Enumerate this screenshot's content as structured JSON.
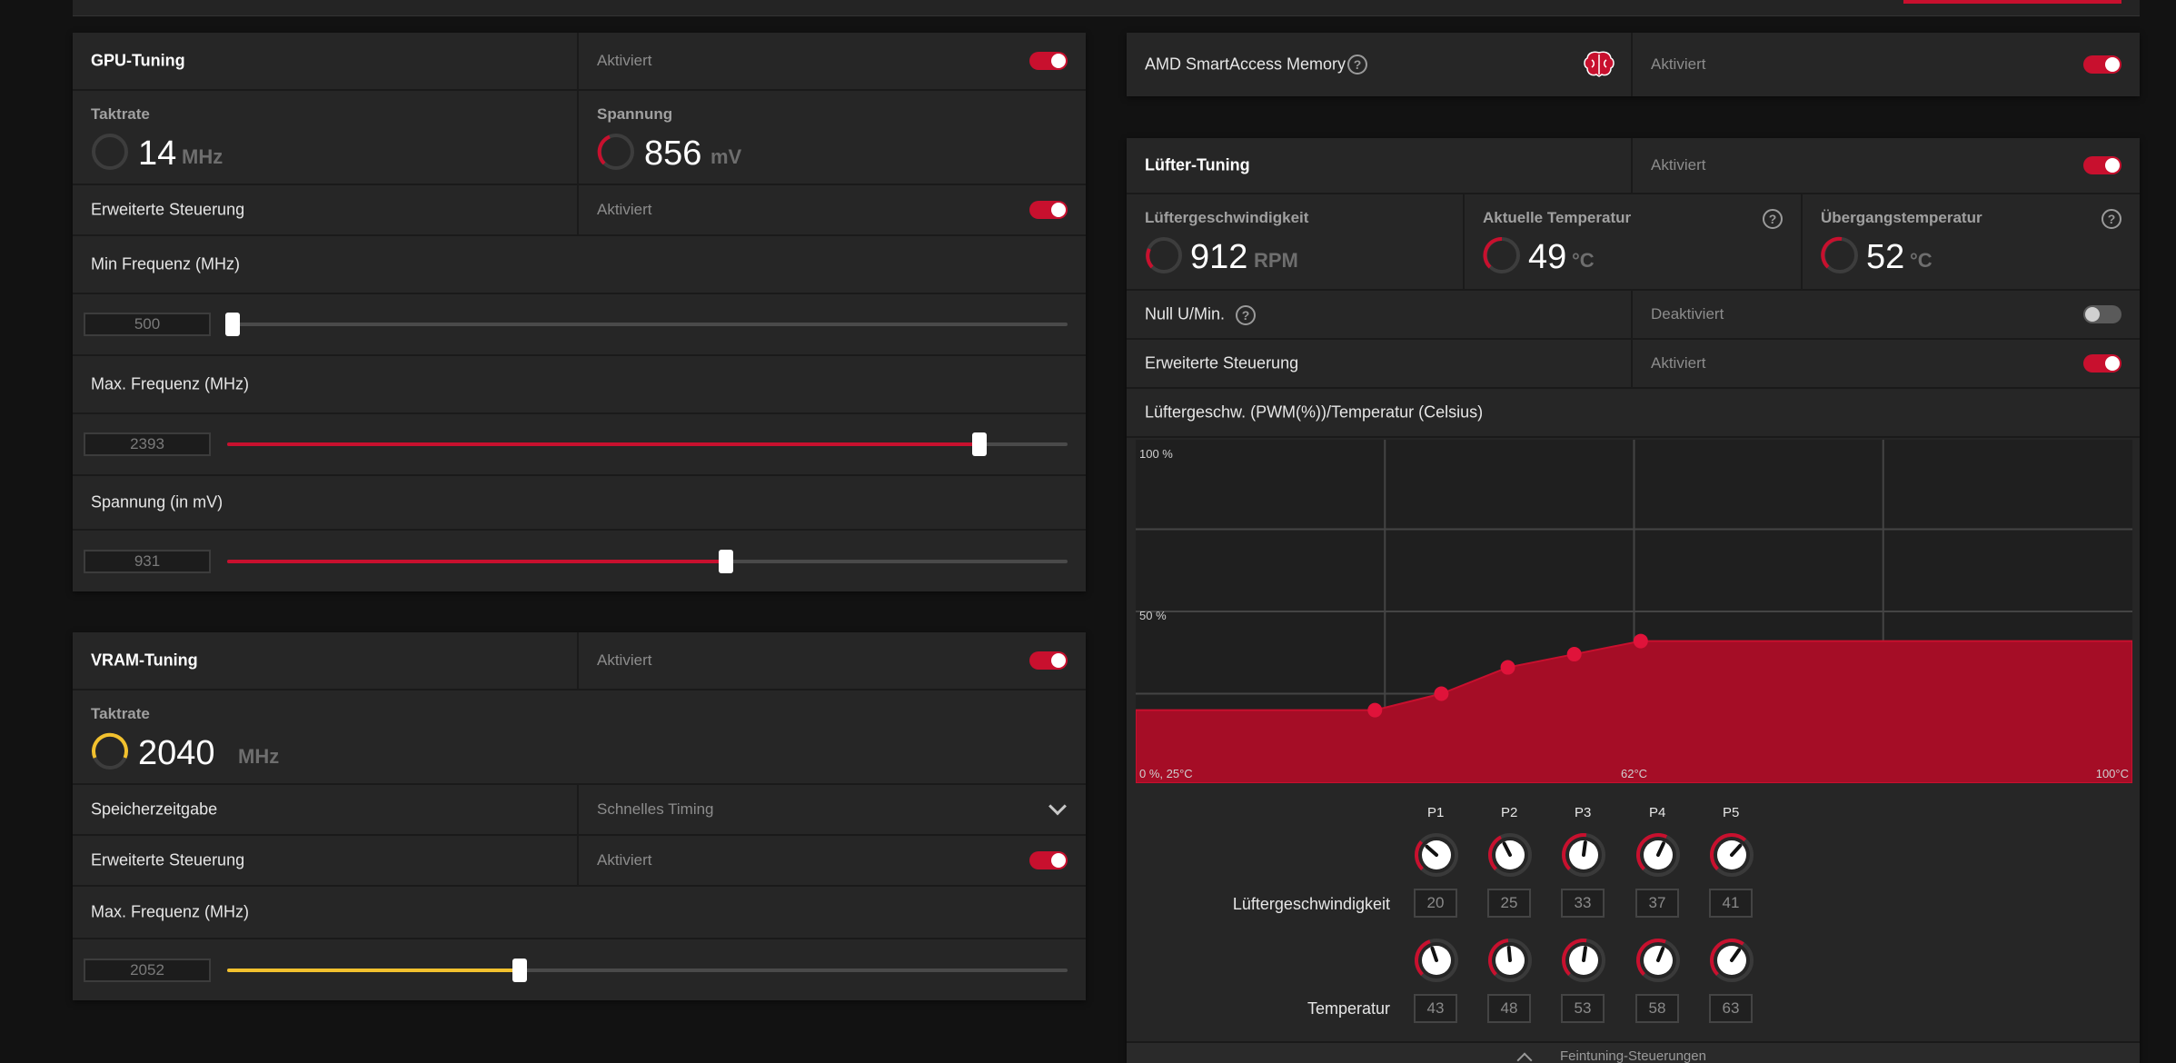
{
  "colors": {
    "accent": "#c8102e",
    "vram_accent": "#f2c12e",
    "panel": "#262626",
    "background": "#121212"
  },
  "gpu_tuning": {
    "title": "GPU-Tuning",
    "status": "Aktiviert",
    "enabled": true,
    "clock": {
      "label": "Taktrate",
      "value": "14",
      "unit": "MHz"
    },
    "voltage": {
      "label": "Spannung",
      "value": "856",
      "unit": "mV"
    },
    "advanced": {
      "label": "Erweiterte Steuerung",
      "status": "Aktiviert",
      "enabled": true
    },
    "min_freq": {
      "label": "Min Frequenz (MHz)",
      "value": "500",
      "fraction": 0.0
    },
    "max_freq": {
      "label": "Max. Frequenz (MHz)",
      "value": "2393",
      "fraction": 0.895
    },
    "voltage_slider": {
      "label": "Spannung (in mV)",
      "value": "931",
      "fraction": 0.593
    }
  },
  "vram_tuning": {
    "title": "VRAM-Tuning",
    "status": "Aktiviert",
    "enabled": true,
    "clock": {
      "label": "Taktrate",
      "value": "2040",
      "unit": "MHz"
    },
    "memory_timing": {
      "label": "Speicherzeitgabe",
      "value": "Schnelles Timing"
    },
    "advanced": {
      "label": "Erweiterte Steuerung",
      "status": "Aktiviert",
      "enabled": true
    },
    "max_freq": {
      "label": "Max. Frequenz (MHz)",
      "value": "2052",
      "fraction": 0.348
    }
  },
  "sam": {
    "label": "AMD SmartAccess Memory",
    "help": "?",
    "icon": "brain-icon",
    "status": "Aktiviert",
    "enabled": true
  },
  "fan_tuning": {
    "title": "Lüfter-Tuning",
    "status": "Aktiviert",
    "enabled": true,
    "fan_speed": {
      "label": "Lüftergeschwindigkeit",
      "value": "912",
      "unit": "RPM"
    },
    "current_temp": {
      "label": "Aktuelle Temperatur",
      "value": "49",
      "unit": "°C",
      "help": "?"
    },
    "junction_temp": {
      "label": "Übergangstemperatur",
      "value": "52",
      "unit": "°C",
      "help": "?"
    },
    "zero_rpm": {
      "label": "Null U/Min.",
      "help": "?",
      "status": "Deaktiviert",
      "enabled": false
    },
    "advanced": {
      "label": "Erweiterte Steuerung",
      "status": "Aktiviert",
      "enabled": true
    },
    "curve_title": "Lüftergeschw. (PWM(%))/Temperatur (Celsius)",
    "chart": {
      "y_top": "100 %",
      "y_mid": "50 %",
      "x_left": "0 %, 25°C",
      "x_mid": "62°C",
      "x_right": "100°C"
    },
    "points_header": [
      "P1",
      "P2",
      "P3",
      "P4",
      "P5"
    ],
    "speed_label": "Lüftergeschwindigkeit",
    "temp_label": "Temperatur",
    "speeds": [
      "20",
      "25",
      "33",
      "37",
      "41"
    ],
    "temps": [
      "43",
      "48",
      "53",
      "58",
      "63"
    ],
    "footer_label": "Feintuning-Steuerungen"
  },
  "chart_data": {
    "type": "area",
    "x": [
      25,
      43,
      48,
      53,
      58,
      63,
      100
    ],
    "values": [
      20,
      20,
      25,
      33,
      37,
      41,
      41
    ],
    "title": "Lüftergeschw. (PWM(%))/Temperatur (Celsius)",
    "xlabel": "",
    "ylabel": "",
    "xlim": [
      25,
      100
    ],
    "ylim": [
      0,
      100
    ],
    "x_tick_labels": [
      "0 %, 25°C",
      "62°C",
      "100°C"
    ],
    "y_tick_labels": [
      "50 %",
      "100 %"
    ],
    "grid": true
  }
}
